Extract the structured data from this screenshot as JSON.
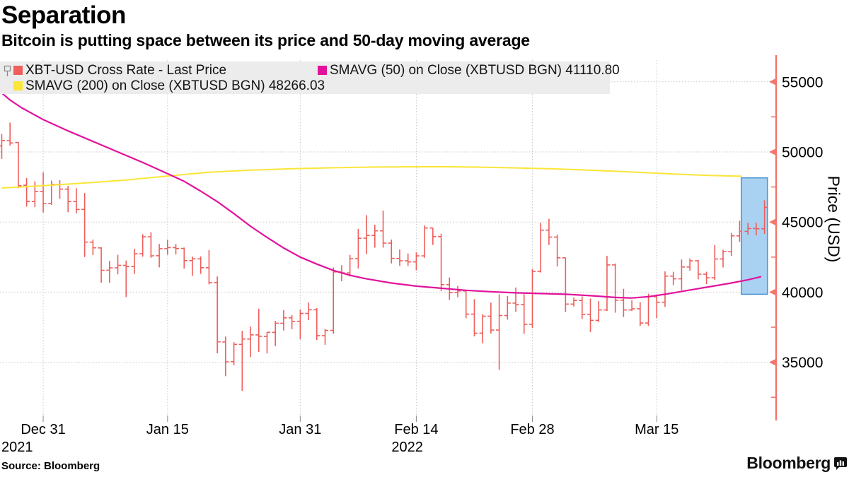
{
  "header": {
    "title": "Separation",
    "subtitle": "Bitcoin is putting space between its price and 50-day moving average"
  },
  "legend": {
    "items": [
      {
        "label": "XBT-USD Cross Rate - Last Price",
        "color": "#ee5e5b"
      },
      {
        "label": "SMAVG (50)  on Close (XBTUSD BGN) 41110.80",
        "color": "#e2119c"
      },
      {
        "label": "SMAVG (200)  on Close (XBTUSD BGN) 48266.03",
        "color": "#fbe538"
      }
    ]
  },
  "footer": {
    "source": "Source: Bloomberg",
    "brand": "Bloomberg"
  },
  "colors": {
    "bar": "#ee5e5b",
    "axis": "#f4756d",
    "ma50": "#e2119c",
    "ma200": "#fbe538",
    "grid": "#c7c7c7",
    "tick_stub": "#8a8a8a",
    "box_fill": "#a9d2f2",
    "box_stroke": "#4f96cf",
    "legend_bg": "#ececec",
    "text": "#000000"
  },
  "chart_data": {
    "type": "ohlc",
    "title": "Separation",
    "ylabel": "Price (USD)",
    "grid": true,
    "legend_position": "top",
    "ylim": [
      31000,
      56550
    ],
    "xlim_days": [
      -0.21,
      93.4
    ],
    "y_ticks": [
      55000,
      50000,
      45000,
      40000,
      35000
    ],
    "y_minor_ticks": [
      52500,
      47500,
      42500,
      37500,
      32500
    ],
    "x_ticks": [
      {
        "day": 5,
        "label": "Dec 31",
        "year": "2021",
        "year_dx": -59
      },
      {
        "day": 20,
        "label": "Jan 15"
      },
      {
        "day": 36,
        "label": "Jan 31"
      },
      {
        "day": 50,
        "label": "Feb 14",
        "year": "2022",
        "year_dx": -35
      },
      {
        "day": 64,
        "label": "Feb 28"
      },
      {
        "day": 79,
        "label": "Mar 15"
      }
    ],
    "series": [
      {
        "name": "XBT-USD Cross Rate - Last Price",
        "type": "ohlc",
        "color": "#ee5e5b",
        "bars": [
          [
            50428,
            51280,
            49500,
            50809
          ],
          [
            50802,
            52088,
            50449,
            50640
          ],
          [
            50679,
            50704,
            47414,
            47588
          ],
          [
            47623,
            48139,
            46096,
            46464
          ],
          [
            46464,
            47900,
            46060,
            47178
          ],
          [
            47169,
            48548,
            45678,
            46306
          ],
          [
            46311,
            47954,
            46217,
            47686
          ],
          [
            47680,
            47990,
            46654,
            47345
          ],
          [
            47343,
            47570,
            45696,
            46458
          ],
          [
            46458,
            47406,
            45618,
            45897
          ],
          [
            45899,
            47070,
            42500,
            43569
          ],
          [
            43565,
            43748,
            42645,
            43160
          ],
          [
            43153,
            43200,
            40672,
            41557
          ],
          [
            41561,
            42228,
            40672,
            41733
          ],
          [
            41734,
            42663,
            41272,
            41911
          ],
          [
            41910,
            42250,
            39650,
            41821
          ],
          [
            41822,
            43100,
            41296,
            42735
          ],
          [
            42735,
            44135,
            42528,
            43949
          ],
          [
            43946,
            44278,
            42447,
            42591
          ],
          [
            42598,
            43436,
            41767,
            43099
          ],
          [
            43101,
            43724,
            42669,
            43177
          ],
          [
            43172,
            43436,
            42691,
            43113
          ],
          [
            43118,
            43179,
            41680,
            42250
          ],
          [
            42250,
            42534,
            41170,
            42375
          ],
          [
            42374,
            42550,
            41303,
            41744
          ],
          [
            41744,
            43000,
            40555,
            40680
          ],
          [
            40680,
            41115,
            35633,
            36457
          ],
          [
            36445,
            36833,
            34008,
            35030
          ],
          [
            35047,
            36433,
            34784,
            36276
          ],
          [
            36275,
            37247,
            32967,
            36654
          ],
          [
            36654,
            37545,
            35364,
            36954
          ],
          [
            36950,
            38825,
            35740,
            36852
          ],
          [
            36841,
            37148,
            35629,
            37138
          ],
          [
            37128,
            37952,
            36155,
            37784
          ],
          [
            37780,
            38720,
            37268,
            38166
          ],
          [
            38166,
            38359,
            37351,
            37917
          ],
          [
            37920,
            38744,
            36632,
            38483
          ],
          [
            38481,
            39265,
            38000,
            38743
          ],
          [
            38742,
            38855,
            36586,
            36896
          ],
          [
            36896,
            37374,
            36247,
            37270
          ],
          [
            37270,
            41759,
            37026,
            41441
          ],
          [
            41441,
            41919,
            40777,
            41378
          ],
          [
            41375,
            42656,
            41125,
            42380
          ],
          [
            42380,
            44515,
            41684,
            43840
          ],
          [
            43849,
            45492,
            42702,
            44042
          ],
          [
            44042,
            44810,
            43175,
            44372
          ],
          [
            44372,
            45821,
            43175,
            43495
          ],
          [
            43495,
            43748,
            42045,
            42407
          ],
          [
            42407,
            43048,
            41882,
            42236
          ],
          [
            42236,
            42760,
            41870,
            42157
          ],
          [
            42157,
            42842,
            41550,
            42586
          ],
          [
            42586,
            44751,
            42450,
            44575
          ],
          [
            44575,
            44578,
            43361,
            43961
          ],
          [
            43961,
            44164,
            40073,
            40538
          ],
          [
            40538,
            41047,
            39450,
            39974
          ],
          [
            39974,
            40444,
            39639,
            40086
          ],
          [
            40086,
            40125,
            38140,
            38431
          ],
          [
            38431,
            39494,
            36842,
            37075
          ],
          [
            37075,
            38429,
            36350,
            38286
          ],
          [
            38286,
            39249,
            37050,
            37296
          ],
          [
            37296,
            39843,
            34459,
            38333
          ],
          [
            38333,
            39717,
            38042,
            39219
          ],
          [
            39219,
            40329,
            38600,
            39112
          ],
          [
            39112,
            39855,
            37027,
            37706
          ],
          [
            37706,
            41650,
            37450,
            41480
          ],
          [
            41480,
            44949,
            41400,
            44421
          ],
          [
            44421,
            45228,
            43361,
            43924
          ],
          [
            43924,
            44101,
            41832,
            42451
          ],
          [
            42451,
            42458,
            38585,
            39148
          ],
          [
            39148,
            39613,
            38977,
            39404
          ],
          [
            39404,
            39693,
            38088,
            38420
          ],
          [
            38420,
            39547,
            37155,
            37989
          ],
          [
            37989,
            39362,
            37867,
            38730
          ],
          [
            38730,
            42594,
            38656,
            41941
          ],
          [
            41941,
            42039,
            38536,
            39422
          ],
          [
            39422,
            40236,
            38223,
            38729
          ],
          [
            38729,
            39417,
            38656,
            38814
          ],
          [
            38814,
            39283,
            37578,
            37799
          ],
          [
            37799,
            39887,
            37600,
            39671
          ],
          [
            39671,
            39839,
            38142,
            39280
          ],
          [
            39280,
            41478,
            38950,
            41143
          ],
          [
            41143,
            41454,
            40500,
            40951
          ],
          [
            40951,
            42325,
            40135,
            41794
          ],
          [
            41794,
            42400,
            41531,
            42233
          ],
          [
            42233,
            42296,
            40911,
            41282
          ],
          [
            41282,
            41454,
            40571,
            41022
          ],
          [
            41022,
            43361,
            40875,
            42364
          ],
          [
            42364,
            43027,
            41762,
            42886
          ],
          [
            42886,
            44219,
            42577,
            44013
          ],
          [
            44013,
            45094,
            43587,
            44331
          ],
          [
            44331,
            44950,
            44101,
            44538
          ],
          [
            44538,
            44950,
            44050,
            44520
          ],
          [
            44520,
            46550,
            44150,
            46050
          ]
        ]
      },
      {
        "name": "SMAVG (50) on Close (XBTUSD BGN)",
        "type": "line",
        "color": "#e2119c",
        "last_value": 41110.8,
        "points": [
          [
            0,
            54200
          ],
          [
            1,
            53700
          ],
          [
            2.4,
            53150
          ],
          [
            5,
            52300
          ],
          [
            8,
            51500
          ],
          [
            11,
            50750
          ],
          [
            14,
            50000
          ],
          [
            17,
            49250
          ],
          [
            20,
            48450
          ],
          [
            22,
            47900
          ],
          [
            24,
            47200
          ],
          [
            26,
            46450
          ],
          [
            28,
            45600
          ],
          [
            30,
            44700
          ],
          [
            32,
            43900
          ],
          [
            34,
            43150
          ],
          [
            36,
            42500
          ],
          [
            38,
            42000
          ],
          [
            40,
            41550
          ],
          [
            42,
            41200
          ],
          [
            44,
            40950
          ],
          [
            47,
            40650
          ],
          [
            50,
            40430
          ],
          [
            53,
            40280
          ],
          [
            56,
            40130
          ],
          [
            59,
            40030
          ],
          [
            62,
            39950
          ],
          [
            65,
            39900
          ],
          [
            68,
            39850
          ],
          [
            71,
            39750
          ],
          [
            74,
            39620
          ],
          [
            76,
            39580
          ],
          [
            78,
            39680
          ],
          [
            80,
            39850
          ],
          [
            82,
            40050
          ],
          [
            84,
            40250
          ],
          [
            86,
            40450
          ],
          [
            88,
            40650
          ],
          [
            90,
            40880
          ],
          [
            91.6,
            41110
          ]
        ]
      },
      {
        "name": "SMAVG (200) on Close (XBTUSD BGN)",
        "type": "line",
        "color": "#fbe538",
        "last_value": 48266.03,
        "points": [
          [
            0,
            47430
          ],
          [
            5,
            47590
          ],
          [
            10,
            47780
          ],
          [
            15,
            48000
          ],
          [
            20,
            48280
          ],
          [
            25,
            48550
          ],
          [
            30,
            48700
          ],
          [
            35,
            48800
          ],
          [
            40,
            48870
          ],
          [
            45,
            48920
          ],
          [
            50,
            48940
          ],
          [
            54,
            48940
          ],
          [
            58,
            48910
          ],
          [
            62,
            48860
          ],
          [
            66,
            48800
          ],
          [
            70,
            48720
          ],
          [
            74,
            48620
          ],
          [
            78,
            48510
          ],
          [
            82,
            48400
          ],
          [
            85,
            48330
          ],
          [
            87,
            48300
          ],
          [
            89.3,
            48266
          ]
        ]
      }
    ],
    "highlight_box": {
      "day_from": 89.2,
      "day_to": 92.35,
      "value_top": 48150,
      "value_bottom": 39850,
      "fill": "#a9d2f2",
      "stroke": "#4f96cf"
    }
  }
}
